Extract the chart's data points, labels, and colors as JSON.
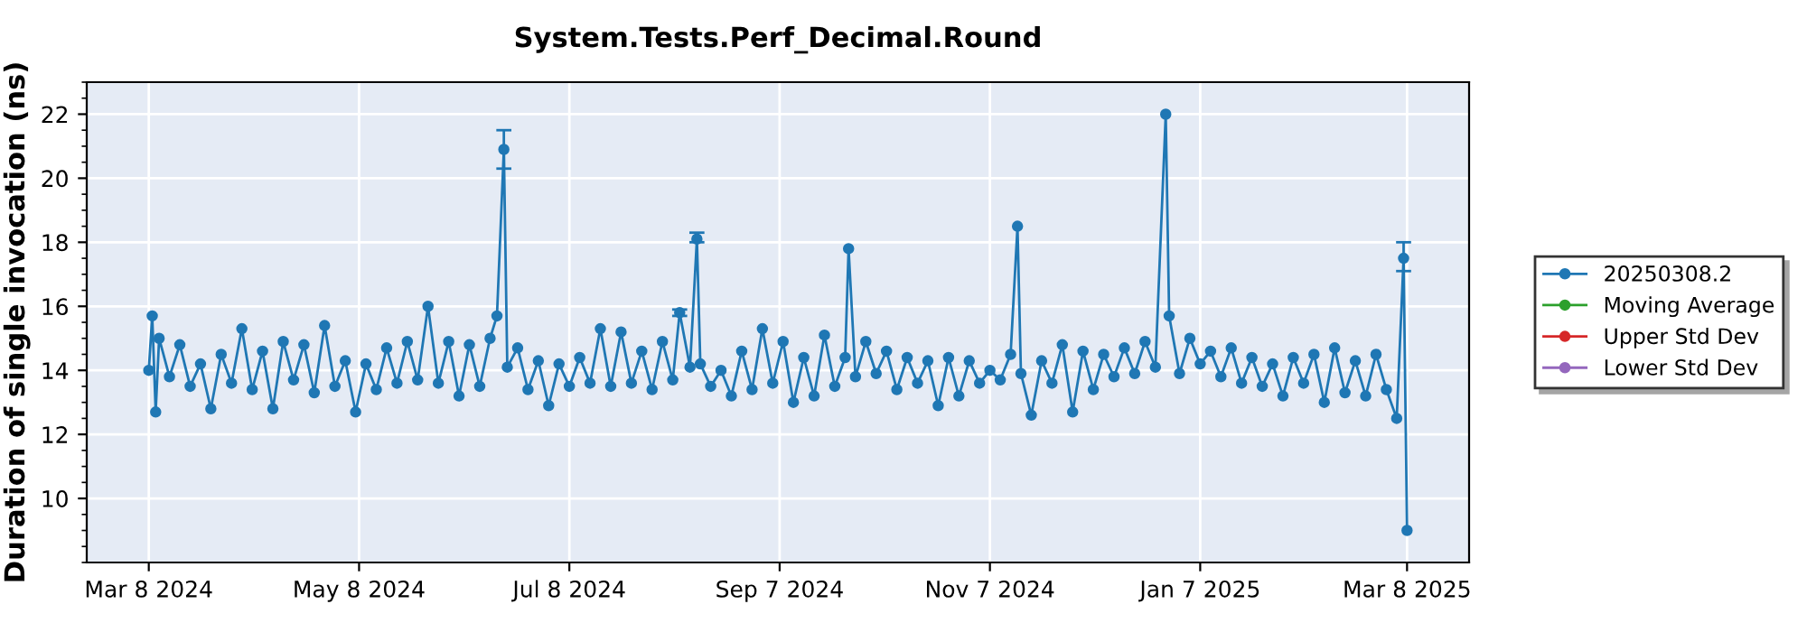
{
  "chart_data": {
    "type": "line",
    "title": "System.Tests.Perf_Decimal.Round",
    "ylabel": "Duration of single invocation (ns)",
    "xlim": [
      "2024-02-19",
      "2025-03-26"
    ],
    "xticks": [
      {
        "value": "2024-03-08",
        "label": "Mar 8 2024"
      },
      {
        "value": "2024-05-08",
        "label": "May 8 2024"
      },
      {
        "value": "2024-07-08",
        "label": "Jul 8 2024"
      },
      {
        "value": "2024-09-07",
        "label": "Sep 7 2024"
      },
      {
        "value": "2024-11-07",
        "label": "Nov 7 2024"
      },
      {
        "value": "2025-01-07",
        "label": "Jan 7 2025"
      },
      {
        "value": "2025-03-08",
        "label": "Mar 8 2025"
      }
    ],
    "ylim": [
      8,
      23
    ],
    "yticks": [
      10,
      12,
      14,
      16,
      18,
      20,
      22
    ],
    "grid": true,
    "legend": "right",
    "marker": "circle",
    "line_style": "solid",
    "series": [
      {
        "name": "20250308.2",
        "color": "#1f77b4",
        "x": [
          "2024-03-08",
          "2024-03-09",
          "2024-03-10",
          "2024-03-11",
          "2024-03-14",
          "2024-03-17",
          "2024-03-20",
          "2024-03-23",
          "2024-03-26",
          "2024-03-29",
          "2024-04-01",
          "2024-04-04",
          "2024-04-07",
          "2024-04-10",
          "2024-04-13",
          "2024-04-16",
          "2024-04-19",
          "2024-04-22",
          "2024-04-25",
          "2024-04-28",
          "2024-05-01",
          "2024-05-04",
          "2024-05-07",
          "2024-05-10",
          "2024-05-13",
          "2024-05-16",
          "2024-05-19",
          "2024-05-22",
          "2024-05-25",
          "2024-05-28",
          "2024-05-31",
          "2024-06-03",
          "2024-06-06",
          "2024-06-09",
          "2024-06-12",
          "2024-06-15",
          "2024-06-17",
          "2024-06-19",
          "2024-06-20",
          "2024-06-23",
          "2024-06-26",
          "2024-06-29",
          "2024-07-02",
          "2024-07-05",
          "2024-07-08",
          "2024-07-11",
          "2024-07-14",
          "2024-07-17",
          "2024-07-20",
          "2024-07-23",
          "2024-07-26",
          "2024-07-29",
          "2024-08-01",
          "2024-08-04",
          "2024-08-07",
          "2024-08-09",
          "2024-08-12",
          "2024-08-14",
          "2024-08-15",
          "2024-08-18",
          "2024-08-21",
          "2024-08-24",
          "2024-08-27",
          "2024-08-30",
          "2024-09-02",
          "2024-09-05",
          "2024-09-08",
          "2024-09-11",
          "2024-09-14",
          "2024-09-17",
          "2024-09-20",
          "2024-09-23",
          "2024-09-26",
          "2024-09-27",
          "2024-09-29",
          "2024-10-02",
          "2024-10-05",
          "2024-10-08",
          "2024-10-11",
          "2024-10-14",
          "2024-10-17",
          "2024-10-20",
          "2024-10-23",
          "2024-10-26",
          "2024-10-29",
          "2024-11-01",
          "2024-11-04",
          "2024-11-07",
          "2024-11-10",
          "2024-11-13",
          "2024-11-15",
          "2024-11-16",
          "2024-11-19",
          "2024-11-22",
          "2024-11-25",
          "2024-11-28",
          "2024-12-01",
          "2024-12-04",
          "2024-12-07",
          "2024-12-10",
          "2024-12-13",
          "2024-12-16",
          "2024-12-19",
          "2024-12-22",
          "2024-12-25",
          "2024-12-28",
          "2024-12-29",
          "2025-01-01",
          "2025-01-04",
          "2025-01-07",
          "2025-01-10",
          "2025-01-13",
          "2025-01-16",
          "2025-01-19",
          "2025-01-22",
          "2025-01-25",
          "2025-01-28",
          "2025-01-31",
          "2025-02-03",
          "2025-02-06",
          "2025-02-09",
          "2025-02-12",
          "2025-02-15",
          "2025-02-18",
          "2025-02-21",
          "2025-02-24",
          "2025-02-27",
          "2025-03-02",
          "2025-03-05",
          "2025-03-07",
          "2025-03-08"
        ],
        "values": [
          14.0,
          15.7,
          12.7,
          15.0,
          13.8,
          14.8,
          13.5,
          14.2,
          12.8,
          14.5,
          13.6,
          15.3,
          13.4,
          14.6,
          12.8,
          14.9,
          13.7,
          14.8,
          13.3,
          15.4,
          13.5,
          14.3,
          12.7,
          14.2,
          13.4,
          14.7,
          13.6,
          14.9,
          13.7,
          16.0,
          13.6,
          14.9,
          13.2,
          14.8,
          13.5,
          15.0,
          15.7,
          20.9,
          14.1,
          14.7,
          13.4,
          14.3,
          12.9,
          14.2,
          13.5,
          14.4,
          13.6,
          15.3,
          13.5,
          15.2,
          13.6,
          14.6,
          13.4,
          14.9,
          13.7,
          15.8,
          14.1,
          18.1,
          14.2,
          13.5,
          14.0,
          13.2,
          14.6,
          13.4,
          15.3,
          13.6,
          14.9,
          13.0,
          14.4,
          13.2,
          15.1,
          13.5,
          14.4,
          17.8,
          13.8,
          14.9,
          13.9,
          14.6,
          13.4,
          14.4,
          13.6,
          14.3,
          12.9,
          14.4,
          13.2,
          14.3,
          13.6,
          14.0,
          13.7,
          14.5,
          18.5,
          13.9,
          12.6,
          14.3,
          13.6,
          14.8,
          12.7,
          14.6,
          13.4,
          14.5,
          13.8,
          14.7,
          13.9,
          14.9,
          14.1,
          22.0,
          15.7,
          13.9,
          15.0,
          14.2,
          14.6,
          13.8,
          14.7,
          13.6,
          14.4,
          13.5,
          14.2,
          13.2,
          14.4,
          13.6,
          14.5,
          13.0,
          14.7,
          13.3,
          14.3,
          13.2,
          14.5,
          13.4,
          12.5,
          17.5,
          9.0
        ],
        "errors": [
          null,
          null,
          null,
          null,
          null,
          null,
          null,
          null,
          null,
          null,
          null,
          null,
          null,
          null,
          null,
          null,
          null,
          null,
          null,
          null,
          null,
          null,
          null,
          null,
          null,
          null,
          null,
          null,
          null,
          null,
          null,
          null,
          null,
          null,
          null,
          null,
          null,
          [
            20.3,
            21.5
          ],
          null,
          null,
          null,
          null,
          null,
          null,
          null,
          null,
          null,
          null,
          null,
          null,
          null,
          null,
          null,
          null,
          null,
          [
            15.7,
            15.9
          ],
          null,
          [
            18.0,
            18.3
          ],
          null,
          null,
          null,
          null,
          null,
          null,
          null,
          null,
          null,
          null,
          null,
          null,
          null,
          null,
          null,
          null,
          null,
          null,
          null,
          null,
          null,
          null,
          null,
          null,
          null,
          null,
          null,
          null,
          null,
          null,
          null,
          null,
          null,
          null,
          null,
          null,
          null,
          null,
          null,
          null,
          null,
          null,
          null,
          null,
          null,
          null,
          null,
          null,
          null,
          null,
          null,
          null,
          null,
          null,
          null,
          null,
          null,
          null,
          null,
          null,
          null,
          null,
          null,
          null,
          null,
          null,
          null,
          null,
          null,
          null,
          null,
          [
            17.1,
            18.0
          ],
          null
        ]
      },
      {
        "name": "Moving Average",
        "color": "#2ca02c"
      },
      {
        "name": "Upper Std Dev",
        "color": "#d62728"
      },
      {
        "name": "Lower Std Dev",
        "color": "#9467bd"
      }
    ]
  }
}
